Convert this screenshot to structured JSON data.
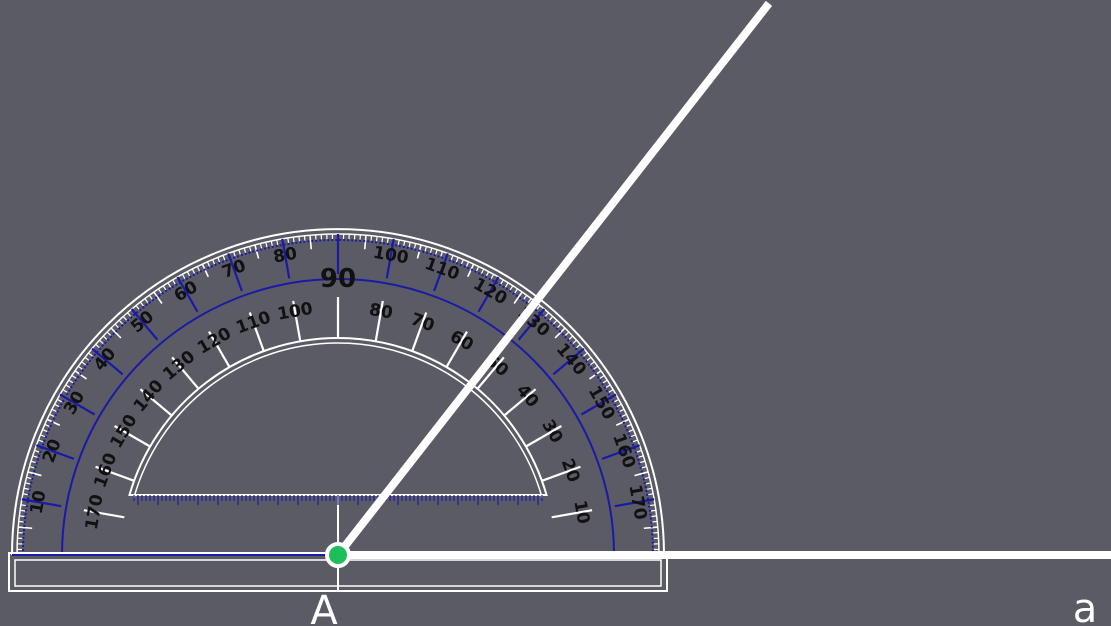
{
  "colors": {
    "background": "#5b5b66",
    "protractor_outline": "#ffffff",
    "protractor_scale": "#1a1aa6",
    "ray": "#ffffff",
    "vertex_point": "#1fbe5c",
    "numbers": "#111111"
  },
  "protractor": {
    "outer_scale": [
      10,
      20,
      30,
      40,
      50,
      60,
      70,
      80,
      90,
      100,
      110,
      120,
      130,
      140,
      150,
      160,
      170
    ],
    "inner_scale": [
      170,
      160,
      150,
      140,
      130,
      120,
      110,
      100,
      80,
      70,
      60,
      50,
      40,
      30,
      20,
      10
    ],
    "center_label": "90"
  },
  "angle": {
    "measure_degrees": 52,
    "vertex_label": "A",
    "ray_label": "a"
  }
}
